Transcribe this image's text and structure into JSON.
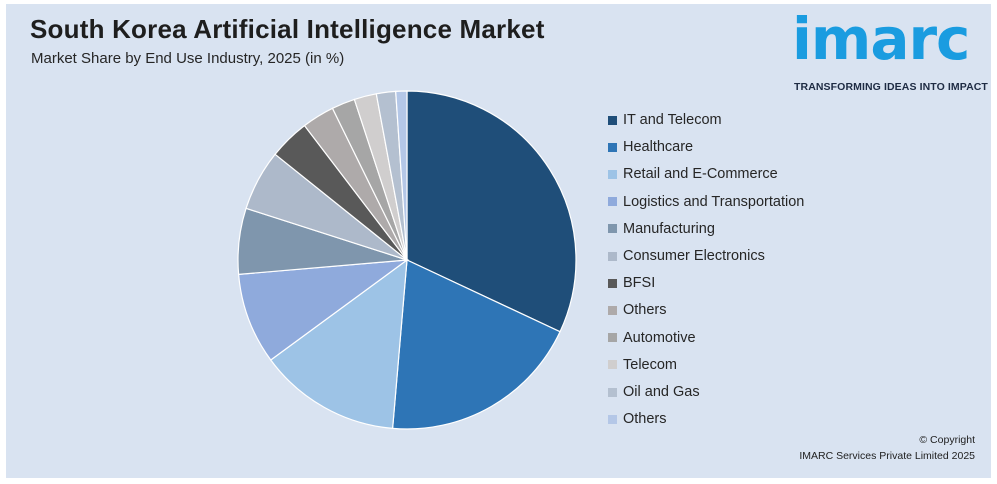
{
  "header": {
    "title": "South Korea Artificial Intelligence Market",
    "subtitle": "Market Share by End Use Industry, 2025 (in %)"
  },
  "logo": {
    "word": "imarc",
    "tagline": "TRANSFORMING IDEAS INTO IMPACT",
    "color": "#1a9ce0"
  },
  "footer": {
    "copyright_line1": "© Copyright",
    "copyright_line2": "IMARC Services Private Limited 2025"
  },
  "chart_data": {
    "type": "pie",
    "title": "South Korea Artificial Intelligence Market",
    "subtitle": "Market Share by End Use Industry, 2025 (in %)",
    "legend_position": "right",
    "categories": [
      "IT and Telecom",
      "Healthcare",
      "Retail and E-Commerce",
      "Logistics and Transportation",
      "Manufacturing",
      "Consumer Electronics",
      "BFSI",
      "Others",
      "Automotive",
      "Telecom",
      "Oil and Gas",
      "Others"
    ],
    "values": [
      33.0,
      20.0,
      14.0,
      9.0,
      6.5,
      6.0,
      4.0,
      3.2,
      2.3,
      2.2,
      1.9,
      1.1
    ],
    "colors": [
      "#1f4e79",
      "#2e75b6",
      "#9dc3e6",
      "#8faadc",
      "#7f96ad",
      "#adb9ca",
      "#595959",
      "#aeaaaa",
      "#a6a6a6",
      "#d0cece",
      "#b4c0d0",
      "#b4c7e7"
    ]
  }
}
